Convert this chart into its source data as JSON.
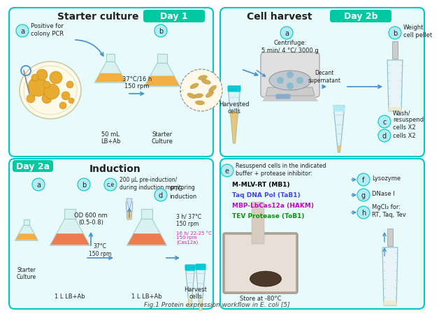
{
  "title": "Fig.1 Protein expression workflow in E. coli [5]",
  "panel_tl_title": "Starter culture",
  "panel_tl_day": "Day 1",
  "panel_tr_title": "Cell harvest",
  "panel_tr_day": "Day 2b",
  "panel_bl_day": "Day 2a",
  "panel_bl_title": "Induction",
  "tl_text_a": "Positive for\ncolony PCR",
  "tl_text_flask1": "50 mL\nLB+Ab",
  "tl_text_flask2": "Starter\nCulture",
  "tl_text_arrow": "37°C/16 h\n150 rpm",
  "tr_text_centrifuge": "Centrifuge:\n5 min/ 4 °C/ 3000 g",
  "tr_text_harvested": "Harvested\ncells",
  "tr_text_decant": "Decant\nsupernatant",
  "tr_text_b": "Weight\ncell pellet",
  "tr_text_c": "Wash/\nresuspend\ncells X2",
  "tr_text_d": "cells X2",
  "bl_text_ce": "200 μL pre-induction/\nduring induction monitoring",
  "bl_text_od": "OD 600 nm\n(0.5-0.8)",
  "bl_text_iptg": "IPTG\ninduction",
  "bl_text_starter": "Starter\nCulture",
  "bl_text_37": "37°C\n150 rpm",
  "bl_text_3h": "3 h/ 37°C\n150 rpm",
  "bl_text_16h": "16 h/ 22-25 °C\n150 rpm\n(Cas12a)",
  "bl_text_flask1": "1 L LB+Ab",
  "bl_text_flask2": "1 L LB+Ab",
  "bl_text_harvest": "Harvest\ncells",
  "br_text_e": "Resuspend cells in the indicated\nbuffer + protease inhibitor:",
  "br_text_mb1": "M-MLV-RT (MB1)",
  "br_text_tab1": "Taq DNA Pol (TaB1)",
  "br_text_hakm": "MBP-LbCas12a (HAKM)",
  "br_text_tob1": "TEV Protease (ToB1)",
  "br_text_f": "Lysozyme",
  "br_text_g": "DNase I",
  "br_text_h": "MgCl₂ for:\nRT, Taq, Tev",
  "br_text_store": "Store at -80°C",
  "color_teal": "#00C8C8",
  "color_teal_badge": "#00C8A0",
  "color_teal_light": "#B2EBF2",
  "color_teal_panel_bg": "#E8FAFA",
  "color_blue_arrow": "#4090D0",
  "color_orange_light": "#F5A830",
  "color_orange_deep": "#F07040",
  "color_magenta": "#DD22AA",
  "color_dark": "#222222",
  "color_white": "#FFFFFF",
  "color_mb1": "#000000",
  "color_tab1": "#4040FF",
  "color_hakm": "#CC00CC",
  "color_tob1": "#009900",
  "background_color": "#FFFFFF"
}
